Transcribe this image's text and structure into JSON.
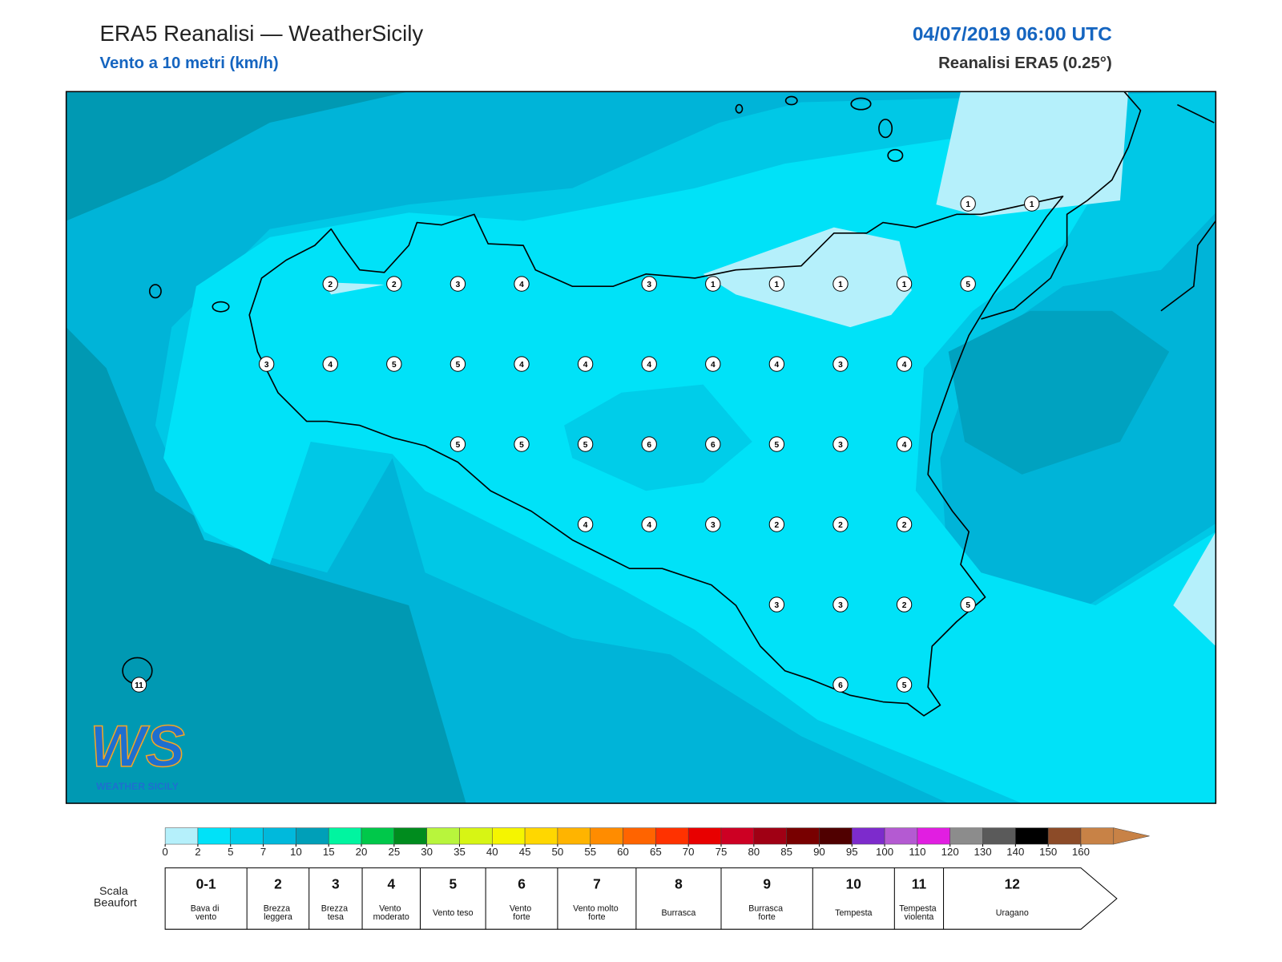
{
  "header": {
    "title": "ERA5 Reanalisi — WeatherSicily",
    "subtitle": "Vento a 10 metri (km/h)",
    "datetime": "04/07/2019 06:00 UTC",
    "source": "Reanalisi ERA5 (0.25°)"
  },
  "map": {
    "stations": [
      11,
      1,
      1,
      2,
      2,
      3,
      4,
      3,
      1,
      1,
      1,
      1,
      5,
      3,
      4,
      5,
      5,
      4,
      4,
      4,
      4,
      4,
      3,
      4,
      5,
      5,
      5,
      6,
      6,
      5,
      3,
      4,
      4,
      4,
      3,
      2,
      2,
      2,
      3,
      3,
      2,
      5,
      6,
      5
    ]
  },
  "colorbar": {
    "ticks": [
      0,
      2,
      5,
      7,
      10,
      15,
      20,
      25,
      30,
      35,
      40,
      45,
      50,
      55,
      60,
      65,
      70,
      75,
      80,
      85,
      90,
      95,
      100,
      110,
      120,
      130,
      140,
      150,
      160
    ],
    "colors": [
      "#b5f0fb",
      "#00e2f8",
      "#00cde9",
      "#00b9dc",
      "#009fb8",
      "#00f5a0",
      "#00c84a",
      "#008c1e",
      "#b8f53c",
      "#d7f514",
      "#f5f500",
      "#ffd700",
      "#ffb400",
      "#ff8c00",
      "#ff6400",
      "#ff3200",
      "#e80000",
      "#cd0023",
      "#a00014",
      "#780000",
      "#500000",
      "#7d2bcc",
      "#b45ad2",
      "#e11ee1",
      "#8c8c8c",
      "#5a5a5a",
      "#000000",
      "#8c4b28",
      "#c88246"
    ]
  },
  "beaufort": {
    "label": "Scala Beaufort",
    "levels": [
      {
        "force": "0-1",
        "description": "Bava di vento"
      },
      {
        "force": "2",
        "description": "Brezza leggera"
      },
      {
        "force": "3",
        "description": "Brezza tesa"
      },
      {
        "force": "4",
        "description": "Vento moderato"
      },
      {
        "force": "5",
        "description": "Vento teso"
      },
      {
        "force": "6",
        "description": "Vento forte"
      },
      {
        "force": "7",
        "description": "Vento molto forte"
      },
      {
        "force": "8",
        "description": "Burrasca"
      },
      {
        "force": "9",
        "description": "Burrasca forte"
      },
      {
        "force": "10",
        "description": "Tempesta"
      },
      {
        "force": "11",
        "description": "Tempesta violenta"
      },
      {
        "force": "12",
        "description": "Uragano"
      }
    ]
  },
  "logo": {
    "mark": "WS",
    "name": "WEATHER SICILY"
  }
}
